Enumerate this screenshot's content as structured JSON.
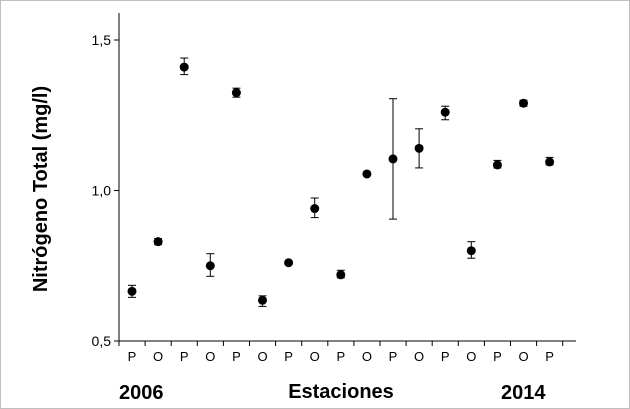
{
  "chart_data": {
    "type": "scatter",
    "categories": [
      "P",
      "O",
      "P",
      "O",
      "P",
      "O",
      "P",
      "O",
      "P",
      "O",
      "P",
      "O",
      "P",
      "O",
      "P",
      "O",
      "P"
    ],
    "series": [
      {
        "values": [
          0.665,
          0.83,
          1.41,
          0.75,
          1.325,
          0.635,
          0.76,
          0.94,
          0.72,
          1.055,
          1.105,
          1.14,
          1.26,
          0.8,
          1.085,
          1.29,
          1.095
        ],
        "error_low": [
          0.645,
          0.82,
          1.385,
          0.715,
          1.31,
          0.615,
          0.76,
          0.91,
          0.71,
          1.055,
          0.905,
          1.075,
          1.235,
          0.775,
          1.075,
          1.28,
          1.085
        ],
        "error_high": [
          0.685,
          0.84,
          1.44,
          0.79,
          1.34,
          0.65,
          0.76,
          0.975,
          0.735,
          1.055,
          1.305,
          1.205,
          1.28,
          0.83,
          1.1,
          1.3,
          1.11
        ],
        "marker_color": "#000000"
      }
    ],
    "ylim": [
      0.5,
      1.5
    ],
    "y_ticks": [
      "0,5",
      "1,0",
      "1,5"
    ],
    "ylabel": "Nitrógeno Total (mg/l)",
    "xlabel": "Estaciones",
    "x_start_label": "2006",
    "x_end_label": "2014",
    "grid": false,
    "legend": "none"
  }
}
